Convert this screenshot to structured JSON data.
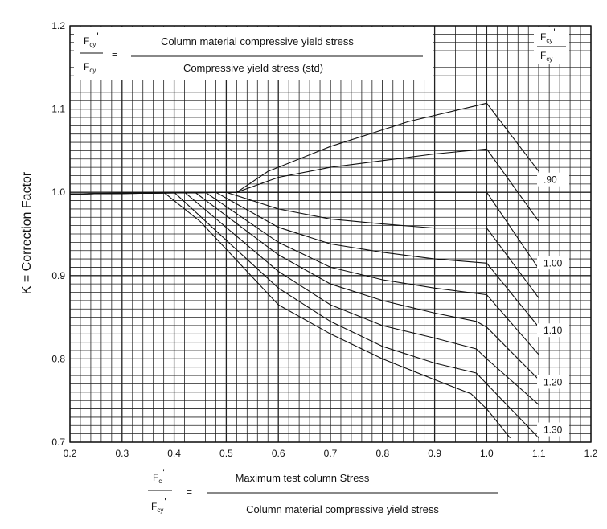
{
  "chart_data": {
    "type": "line",
    "xlim": [
      0.2,
      1.2
    ],
    "ylim": [
      0.7,
      1.2
    ],
    "grid": true,
    "x_ticks": [
      "0.2",
      "0.3",
      "0.4",
      "0.5",
      "0.6",
      "0.7",
      "0.8",
      "0.9",
      "1.0",
      "1.1",
      "1.2"
    ],
    "y_ticks": [
      "0.7",
      "0.8",
      "0.9",
      "1.0",
      "1.1",
      "1.2"
    ],
    "ylabel": "K = Correction Factor",
    "top_formula": {
      "lhs_num": "F",
      "lhs_num_sub": "cy",
      "lhs_num_prime": "'",
      "lhs_den": "F",
      "lhs_den_sub": "cy",
      "equals": "=",
      "numerator": "Column material compressive yield stress",
      "denominator": "Compressive yield stress (std)"
    },
    "bottom_formula": {
      "lhs_num": "F",
      "lhs_num_sub": "c",
      "lhs_num_prime": "'",
      "lhs_den": "F",
      "lhs_den_sub": "cy",
      "lhs_den_prime": "'",
      "equals": "=",
      "numerator": "Maximum test column Stress",
      "denominator": "Column material compressive yield stress"
    },
    "curve_header": {
      "num": "F",
      "num_sub": "cy",
      "num_prime": "'",
      "den": "F",
      "den_sub": "cy"
    },
    "curve_labels": [
      {
        "text": ".90",
        "y": 1.014
      },
      {
        "text": "1.00",
        "y": 0.914
      },
      {
        "text": "1.10",
        "y": 0.833
      },
      {
        "text": "1.20",
        "y": 0.771
      },
      {
        "text": "1.30",
        "y": 0.714
      }
    ],
    "series": [
      {
        "values": [
          [
            0.2,
            0.998
          ],
          [
            0.52,
            1.0
          ],
          [
            0.58,
            1.025
          ],
          [
            0.7,
            1.055
          ],
          [
            0.85,
            1.085
          ],
          [
            1.0,
            1.107
          ],
          [
            1.1,
            1.025
          ]
        ]
      },
      {
        "values": [
          [
            0.2,
            0.998
          ],
          [
            0.52,
            1.0
          ],
          [
            0.6,
            1.018
          ],
          [
            0.7,
            1.03
          ],
          [
            0.8,
            1.038
          ],
          [
            0.9,
            1.046
          ],
          [
            1.0,
            1.052
          ],
          [
            1.1,
            0.965
          ]
        ]
      },
      {
        "values": [
          [
            0.2,
            0.998
          ],
          [
            0.52,
            1.0
          ],
          [
            1.0,
            1.0
          ],
          [
            1.1,
            0.908
          ]
        ]
      },
      {
        "values": [
          [
            0.2,
            0.998
          ],
          [
            0.5,
            1.0
          ],
          [
            0.6,
            0.98
          ],
          [
            0.7,
            0.968
          ],
          [
            0.8,
            0.962
          ],
          [
            0.9,
            0.957
          ],
          [
            1.0,
            0.957
          ],
          [
            1.1,
            0.873
          ]
        ]
      },
      {
        "values": [
          [
            0.2,
            0.998
          ],
          [
            0.48,
            1.0
          ],
          [
            0.6,
            0.958
          ],
          [
            0.7,
            0.938
          ],
          [
            0.8,
            0.928
          ],
          [
            0.9,
            0.92
          ],
          [
            1.0,
            0.915
          ],
          [
            1.1,
            0.838
          ]
        ]
      },
      {
        "values": [
          [
            0.2,
            0.998
          ],
          [
            0.46,
            1.0
          ],
          [
            0.6,
            0.94
          ],
          [
            0.7,
            0.91
          ],
          [
            0.8,
            0.895
          ],
          [
            0.9,
            0.885
          ],
          [
            1.0,
            0.877
          ],
          [
            1.1,
            0.805
          ]
        ]
      },
      {
        "values": [
          [
            0.2,
            0.998
          ],
          [
            0.44,
            1.0
          ],
          [
            0.6,
            0.925
          ],
          [
            0.7,
            0.89
          ],
          [
            0.8,
            0.87
          ],
          [
            0.9,
            0.855
          ],
          [
            0.98,
            0.845
          ],
          [
            1.0,
            0.838
          ],
          [
            1.1,
            0.775
          ]
        ]
      },
      {
        "values": [
          [
            0.2,
            0.998
          ],
          [
            0.42,
            1.0
          ],
          [
            0.6,
            0.905
          ],
          [
            0.7,
            0.865
          ],
          [
            0.8,
            0.84
          ],
          [
            0.9,
            0.825
          ],
          [
            0.98,
            0.812
          ],
          [
            1.0,
            0.8
          ],
          [
            1.1,
            0.745
          ]
        ]
      },
      {
        "values": [
          [
            0.2,
            0.998
          ],
          [
            0.4,
            1.0
          ],
          [
            0.6,
            0.885
          ],
          [
            0.7,
            0.845
          ],
          [
            0.8,
            0.815
          ],
          [
            0.9,
            0.795
          ],
          [
            0.98,
            0.783
          ],
          [
            1.0,
            0.77
          ],
          [
            1.1,
            0.705
          ]
        ]
      },
      {
        "values": [
          [
            0.2,
            0.998
          ],
          [
            0.38,
            1.0
          ],
          [
            0.45,
            0.965
          ],
          [
            0.6,
            0.865
          ],
          [
            0.7,
            0.83
          ],
          [
            0.8,
            0.8
          ],
          [
            0.9,
            0.775
          ],
          [
            0.97,
            0.758
          ],
          [
            1.0,
            0.74
          ],
          [
            1.045,
            0.705
          ]
        ]
      }
    ]
  }
}
